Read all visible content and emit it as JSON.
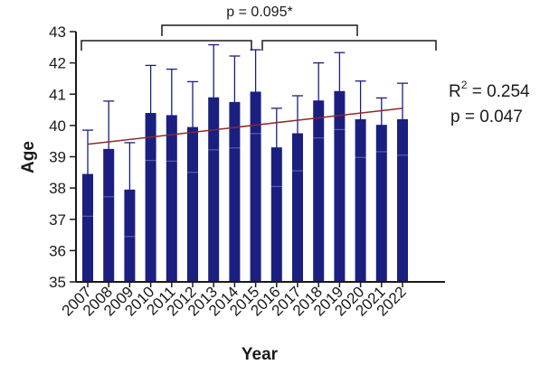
{
  "chart_data": {
    "type": "bar",
    "categories": [
      "2007",
      "2008",
      "2009",
      "2010",
      "2011",
      "2012",
      "2013",
      "2014",
      "2015",
      "2016",
      "2017",
      "2018",
      "2019",
      "2020",
      "2021",
      "2022"
    ],
    "values": [
      38.45,
      39.25,
      37.95,
      40.4,
      40.33,
      39.95,
      40.9,
      40.75,
      41.08,
      39.3,
      39.75,
      40.8,
      41.1,
      40.2,
      40.02,
      40.2
    ],
    "error_upper": [
      39.85,
      40.78,
      39.45,
      41.92,
      41.8,
      41.4,
      42.58,
      42.22,
      42.42,
      40.55,
      40.95,
      42.0,
      42.33,
      41.42,
      40.88,
      41.35
    ],
    "error_lower": [
      37.1,
      37.72,
      36.45,
      38.88,
      38.86,
      38.5,
      39.22,
      39.28,
      39.74,
      38.05,
      38.55,
      39.6,
      39.87,
      38.98,
      39.16,
      39.05
    ],
    "xlabel": "Year",
    "ylabel": "Age",
    "ylim": [
      35,
      43
    ],
    "yticks": [
      "35",
      "36",
      "37",
      "38",
      "39",
      "40",
      "41",
      "42",
      "43"
    ],
    "grid": false,
    "trendline": {
      "start": [
        "2007",
        39.4
      ],
      "end": [
        "2022",
        40.55
      ],
      "color": "#8b2a2a"
    },
    "annotations": {
      "bracket_p": "p = 0.095*",
      "r2_base": "R",
      "r2_sup": "2",
      "r2_value": " = 0.254",
      "trend_p": "p = 0.047"
    },
    "colors": {
      "bar": "#1a1f80",
      "error": "#1a1f80",
      "trend": "#8b2a2a",
      "axis": "#1a1a1a"
    }
  }
}
